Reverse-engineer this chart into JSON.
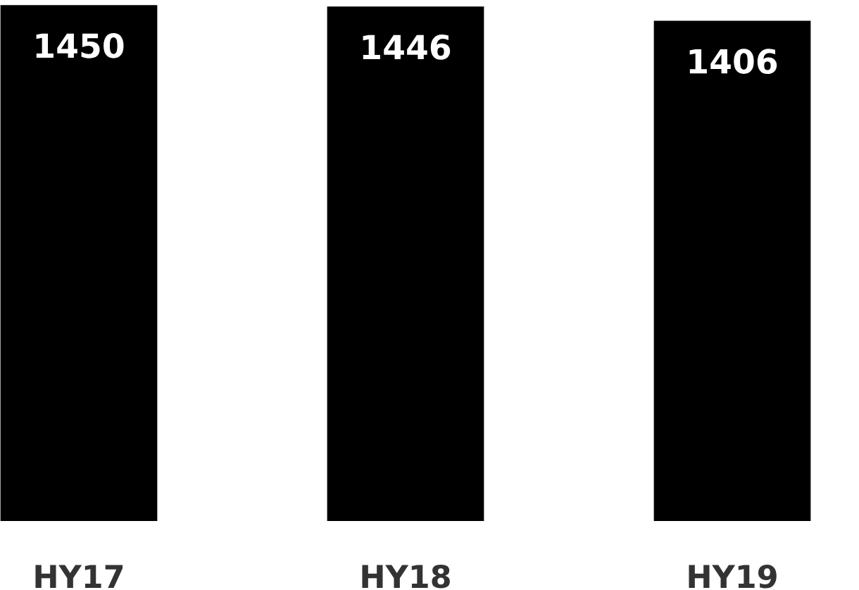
{
  "chart_data": {
    "type": "bar",
    "categories": [
      "HY17",
      "HY18",
      "HY19"
    ],
    "values": [
      1450,
      1446,
      1406
    ],
    "color": "#000000",
    "data_labels": true,
    "tick_labels": "x",
    "grid": false,
    "legend": false
  }
}
